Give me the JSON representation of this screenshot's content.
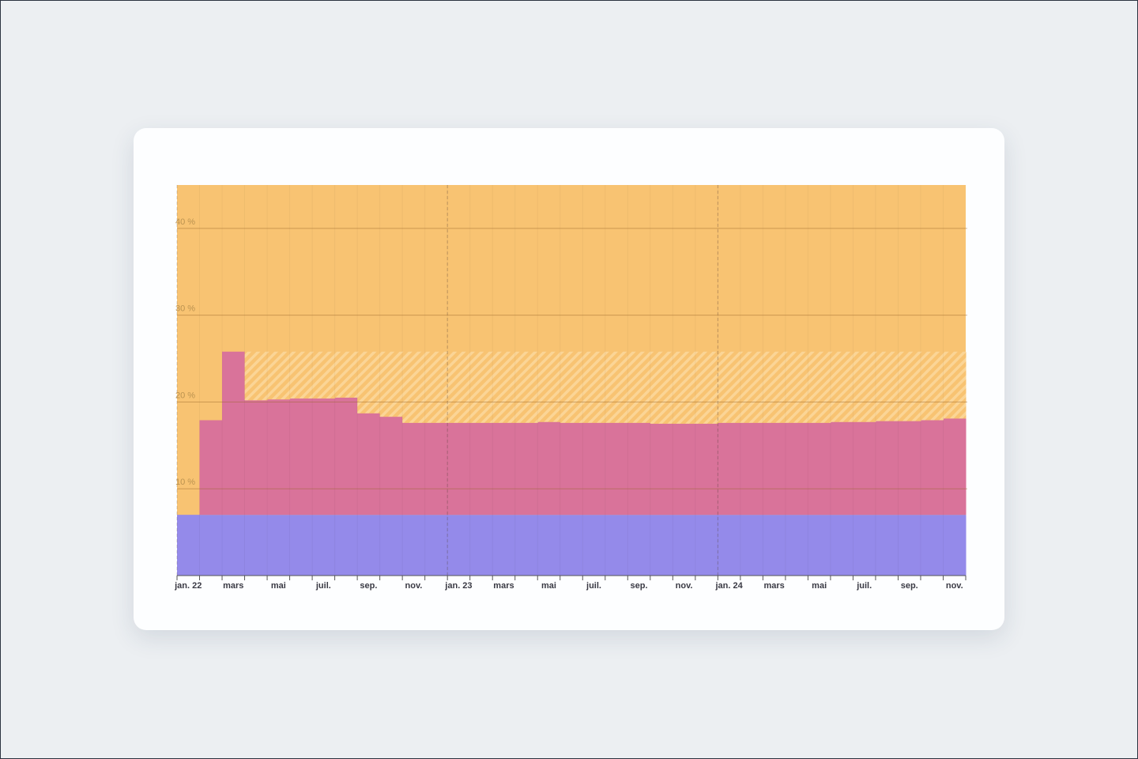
{
  "chart_data": {
    "type": "stacked_step_area",
    "plot_color": "#f8c372",
    "categories": [
      "jan. 22",
      null,
      "mars",
      null,
      "mai",
      null,
      "juil.",
      null,
      "sep.",
      null,
      "nov.",
      null,
      "jan. 23",
      null,
      "mars",
      null,
      "mai",
      null,
      "juil.",
      null,
      "sep.",
      null,
      "nov.",
      null,
      "jan. 24",
      null,
      "mars",
      null,
      "mai",
      null,
      "juil.",
      null,
      "sep.",
      null,
      "nov."
    ],
    "ylim": [
      0,
      45
    ],
    "yticks": [
      {
        "value": 10,
        "label": "10 %"
      },
      {
        "value": 20,
        "label": "20 %"
      },
      {
        "value": 30,
        "label": "30 %"
      },
      {
        "value": 40,
        "label": "40 %"
      }
    ],
    "grid": true,
    "series": [
      {
        "color": "#948aea",
        "values": [
          7,
          7,
          7,
          7,
          7,
          7,
          7,
          7,
          7,
          7,
          7,
          7,
          7,
          7,
          7,
          7,
          7,
          7,
          7,
          7,
          7,
          7,
          7,
          7,
          7,
          7,
          7,
          7,
          7,
          7,
          7,
          7,
          7,
          7,
          7
        ]
      },
      {
        "color": "#d9739a",
        "values": [
          0,
          10.9,
          18.8,
          13.2,
          13.3,
          13.4,
          13.4,
          13.5,
          11.7,
          11.3,
          10.6,
          10.6,
          10.6,
          10.6,
          10.6,
          10.6,
          10.7,
          10.6,
          10.6,
          10.6,
          10.6,
          10.5,
          10.5,
          10.5,
          10.6,
          10.6,
          10.6,
          10.6,
          10.6,
          10.7,
          10.7,
          10.8,
          10.8,
          10.9,
          11.1
        ]
      },
      {
        "color": "#fbd596",
        "hatched": true,
        "values": [
          0,
          0,
          0,
          5.6,
          5.5,
          5.4,
          5.4,
          5.3,
          7.1,
          7.5,
          8.2,
          8.2,
          8.2,
          8.2,
          8.2,
          8.2,
          8.1,
          8.2,
          8.2,
          8.2,
          8.2,
          8.3,
          8.3,
          8.3,
          8.2,
          8.2,
          8.2,
          8.2,
          8.2,
          8.1,
          8.1,
          8.0,
          8.0,
          7.9,
          7.7
        ]
      }
    ]
  }
}
